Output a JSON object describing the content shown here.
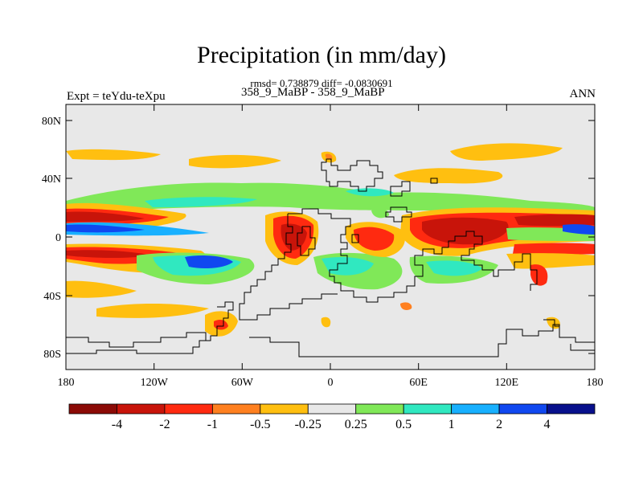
{
  "title": "Precipitation (in mm/day)",
  "stats": "rmsd= 0.738879 diff= -0.0830691",
  "subtitle_center": "358_9_MaBP - 358_9_MaBP",
  "subtitle_left": "Expt = teYdu-teXpu",
  "subtitle_right": "ANN",
  "y_ticks": [
    "80N",
    "40N",
    "0",
    "40S",
    "80S"
  ],
  "x_ticks": [
    "180",
    "120W",
    "60W",
    "0",
    "60E",
    "120E",
    "180"
  ],
  "colorbar": {
    "labels": [
      "-4",
      "-2",
      "-1",
      "-0.5",
      "-0.25",
      "0.25",
      "0.5",
      "1",
      "2",
      "4"
    ],
    "colors": [
      "#8b0a06",
      "#c8140a",
      "#ff2a10",
      "#ff8020",
      "#ffbf10",
      "#e8e8e8",
      "#80e858",
      "#30e8c0",
      "#18b0ff",
      "#1048f0",
      "#08108c"
    ]
  },
  "colors": {
    "dark_red": "#8b0a06",
    "red": "#c8140a",
    "bright_red": "#ff2a10",
    "orange": "#ff8020",
    "yellow": "#ffbf10",
    "gray": "#e8e8e8",
    "green": "#80e858",
    "cyan": "#30e8c0",
    "lightblue": "#18b0ff",
    "blue": "#1048f0",
    "navy": "#08108c"
  }
}
